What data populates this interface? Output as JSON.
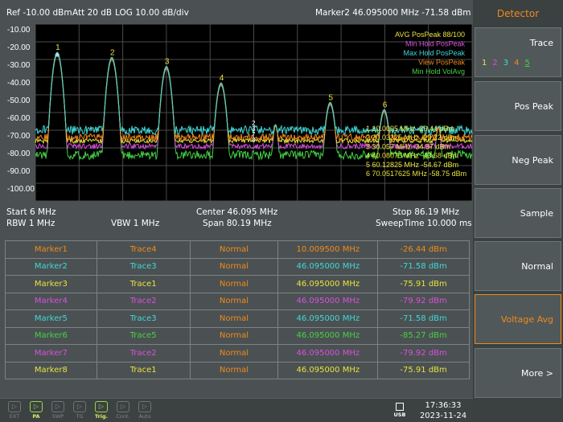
{
  "header": {
    "ref": "Ref -10.00 dBm",
    "att": "Att 20 dB",
    "scale": "LOG 10.00 dB/div",
    "marker_readout": "Marker2 46.095000 MHz  -71.58 dBm"
  },
  "plot": {
    "y_ticks": [
      "-10.00",
      "-20.00",
      "-30.00",
      "-40.00",
      "-50.00",
      "-60.00",
      "-70.00",
      "-80.00",
      "-90.00",
      "-100.00"
    ],
    "legend": [
      {
        "text": "AVG PosPeak 88/100",
        "color": "#e7e23d"
      },
      {
        "text": "Min Hold PosPeak",
        "color": "#d84fe0"
      },
      {
        "text": "Max Hold PosPeak",
        "color": "#3fd8d8"
      },
      {
        "text": "View PosPeak",
        "color": "#f08a1c"
      },
      {
        "text": "Min Hold VolAvg",
        "color": "#46d046"
      }
    ],
    "marker_table": [
      "1  10.0095 MHz  -26.44 dBm",
      "2  20.03325 MHz  -29.22 dBm",
      "3  30.057 MHz  -34.37 dBm",
      "4  40.08075 MHz  -43.68 dBm",
      "5  60.12825 MHz  -54.67 dBm",
      "6  70.0517625 MHz  -58.75 dBm"
    ],
    "peak_labels": [
      "1",
      "2",
      "3",
      "4",
      "5",
      "6"
    ],
    "stacked_labels": [
      "2",
      "3",
      "7",
      "8"
    ]
  },
  "info": {
    "start": "Start 6 MHz",
    "center": "Center 46.095 MHz",
    "stop": "Stop 86.19 MHz",
    "rbw": "RBW 1 MHz",
    "vbw": "VBW 1 MHz",
    "span": "Span 80.19 MHz",
    "sweep": "SweepTime 10.000 ms"
  },
  "markers": [
    {
      "name": "Marker1",
      "trace": "Trace4",
      "mode": "Normal",
      "freq": "10.009500 MHz",
      "amp": "-26.44 dBm",
      "color": "#f08a1c"
    },
    {
      "name": "Marker2",
      "trace": "Trace3",
      "mode": "Normal",
      "freq": "46.095000 MHz",
      "amp": "-71.58 dBm",
      "color": "#3fd8d8"
    },
    {
      "name": "Marker3",
      "trace": "Trace1",
      "mode": "Normal",
      "freq": "46.095000 MHz",
      "amp": "-75.91 dBm",
      "color": "#e7e23d"
    },
    {
      "name": "Marker4",
      "trace": "Trace2",
      "mode": "Normal",
      "freq": "46.095000 MHz",
      "amp": "-79.92 dBm",
      "color": "#d84fe0"
    },
    {
      "name": "Marker5",
      "trace": "Trace3",
      "mode": "Normal",
      "freq": "46.095000 MHz",
      "amp": "-71.58 dBm",
      "color": "#3fd8d8"
    },
    {
      "name": "Marker6",
      "trace": "Trace5",
      "mode": "Normal",
      "freq": "46.095000 MHz",
      "amp": "-85.27 dBm",
      "color": "#46d046"
    },
    {
      "name": "Marker7",
      "trace": "Trace2",
      "mode": "Normal",
      "freq": "46.095000 MHz",
      "amp": "-79.92 dBm",
      "color": "#d84fe0"
    },
    {
      "name": "Marker8",
      "trace": "Trace1",
      "mode": "Normal",
      "freq": "46.095000 MHz",
      "amp": "-75.91 dBm",
      "color": "#e7e23d"
    }
  ],
  "active_marker_columns": {
    "mode_color": "#f08a1c",
    "selected_row_freq_color": "#f08a1c"
  },
  "status_bar": {
    "buttons": [
      {
        "label": "EXT",
        "icon": "ext-icon",
        "active": false
      },
      {
        "label": "PA",
        "icon": "pa-icon",
        "active": true
      },
      {
        "label": "SWP",
        "icon": "swp-icon",
        "active": false
      },
      {
        "label": "TG",
        "icon": "tg-icon",
        "active": false
      },
      {
        "label": "Trig.",
        "icon": "trig-icon",
        "active": true
      },
      {
        "label": "Cont.",
        "icon": "cont-icon",
        "active": false
      },
      {
        "label": "Auto",
        "icon": "auto-icon",
        "active": false
      }
    ],
    "usb": "USB",
    "time": "17:36:33",
    "date": "2023-11-24"
  },
  "sidebar": {
    "title": "Detector",
    "items": [
      {
        "label": "Trace",
        "traces": [
          "1",
          "2",
          "3",
          "4",
          "5"
        ],
        "trace_colors": [
          "#e7e23d",
          "#d84fe0",
          "#3fd8d8",
          "#f08a1c",
          "#46d046"
        ]
      },
      {
        "label": "Pos Peak"
      },
      {
        "label": "Neg Peak"
      },
      {
        "label": "Sample"
      },
      {
        "label": "Normal"
      },
      {
        "label": "Voltage Avg",
        "selected": true
      },
      {
        "label": "More  >"
      }
    ]
  }
}
